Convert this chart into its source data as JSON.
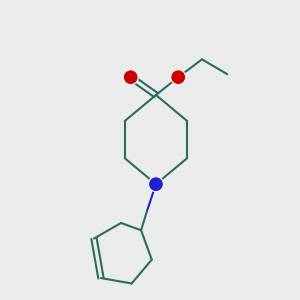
{
  "bg_color": "#eaecec",
  "bond_color": "#2d6b5e",
  "n_color": "#2020cc",
  "o_color": "#cc0000",
  "bond_width": 1.5,
  "fig_size": [
    3.0,
    3.0
  ],
  "dpi": 100,
  "xlim": [
    0,
    10
  ],
  "ylim": [
    0,
    10
  ]
}
